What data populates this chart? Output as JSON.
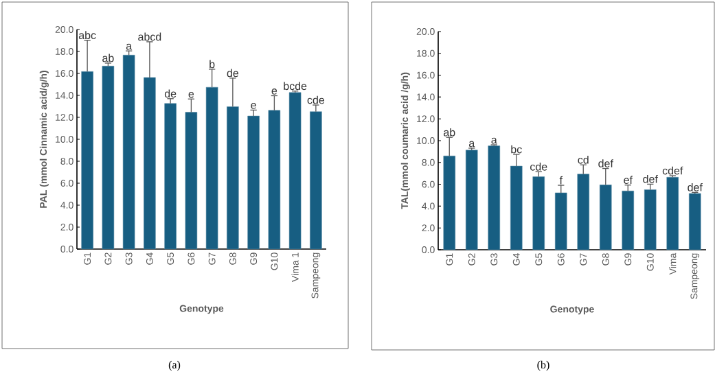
{
  "chart_data": [
    {
      "type": "bar",
      "xlabel": "Genotype",
      "ylabel": "PAL (mmol Cinnamic acid/g/h)",
      "categories": [
        "G1",
        "G2",
        "G3",
        "G4",
        "G5",
        "G6",
        "G7",
        "G8",
        "G9",
        "G10",
        "Vima 1",
        "Sampeong"
      ],
      "values": [
        16.17,
        16.67,
        17.67,
        15.63,
        13.26,
        12.47,
        14.74,
        12.97,
        12.12,
        12.64,
        14.26,
        12.52
      ],
      "errors": [
        2.85,
        0.27,
        0.38,
        3.25,
        0.44,
        1.2,
        1.64,
        2.6,
        0.54,
        1.33,
        0.13,
        0.6
      ],
      "color": "#175e82",
      "ylim": [
        0,
        20
      ],
      "yticks": [
        {
          "value": 0,
          "label": "0.0"
        },
        {
          "value": 2,
          "label": "2.0"
        },
        {
          "value": 4,
          "label": "4.0"
        },
        {
          "value": 6,
          "label": "6.0"
        },
        {
          "value": 8,
          "label": "8.0"
        },
        {
          "value": 10,
          "label": "10.0"
        },
        {
          "value": 12,
          "label": "12.0"
        },
        {
          "value": 14,
          "label": "14.0"
        },
        {
          "value": 16,
          "label": "16.0"
        },
        {
          "value": 18,
          "label": "18.0"
        },
        {
          "value": 20,
          "label": "20.0"
        }
      ],
      "annotations": [
        {
          "text": "abc",
          "x": "G1",
          "y": 19.02
        },
        {
          "text": "ab",
          "x": "G2",
          "y": 16.94
        },
        {
          "text": "a",
          "x": "G3",
          "y": 18.05
        },
        {
          "text": "abcd",
          "x": "G4",
          "y": 18.88
        },
        {
          "text": "de",
          "x": "G5",
          "y": 13.7
        },
        {
          "text": "e",
          "x": "G6",
          "y": 13.67
        },
        {
          "text": "b",
          "x": "G7",
          "y": 16.38
        },
        {
          "text": "de",
          "x": "G8",
          "y": 15.57
        },
        {
          "text": "e",
          "x": "G9",
          "y": 12.66
        },
        {
          "text": "e",
          "x": "G10",
          "y": 13.97
        },
        {
          "text": "bcde",
          "x": "Vima 1",
          "y": 14.39
        },
        {
          "text": "cde",
          "x": "Sampeong",
          "y": 13.12
        },
        "(a)"
      ]
    },
    {
      "type": "bar",
      "xlabel": "Genotype",
      "ylabel": "TAL(mmol coumaric acid /g/h)",
      "categories": [
        "G1",
        "G2",
        "G3",
        "G4",
        "G5",
        "G6",
        "G7",
        "G8",
        "G9",
        "G10",
        "Vima",
        "Sampeong"
      ],
      "values": [
        8.6,
        9.14,
        9.52,
        7.67,
        6.69,
        5.22,
        6.94,
        5.95,
        5.39,
        5.51,
        6.65,
        5.16
      ],
      "errors": [
        1.7,
        0.17,
        0.1,
        1.07,
        0.46,
        0.69,
        0.84,
        1.5,
        0.54,
        0.5,
        0.14,
        0.1
      ],
      "color": "#175e82",
      "ylim": [
        0,
        20
      ],
      "yticks": [
        {
          "value": 0,
          "label": "0.0"
        },
        {
          "value": 2,
          "label": "2.0"
        },
        {
          "value": 4,
          "label": "4.0"
        },
        {
          "value": 6,
          "label": "6.0"
        },
        {
          "value": 8,
          "label": "8.0"
        },
        {
          "value": 10,
          "label": "10.0"
        },
        {
          "value": 12,
          "label": "12.0"
        },
        {
          "value": 14,
          "label": "14.0"
        },
        {
          "value": 16,
          "label": "16.0"
        },
        {
          "value": 18,
          "label": "18.0"
        },
        {
          "value": 20,
          "label": "20.0"
        }
      ],
      "annotations": [
        {
          "text": "ab",
          "x": "G1",
          "y": 10.3
        },
        {
          "text": "a",
          "x": "G2",
          "y": 9.31
        },
        {
          "text": "a",
          "x": "G3",
          "y": 9.62
        },
        {
          "text": "bc",
          "x": "G4",
          "y": 8.74
        },
        {
          "text": "cde",
          "x": "G5",
          "y": 7.15
        },
        {
          "text": "f",
          "x": "G6",
          "y": 5.91
        },
        {
          "text": "cd",
          "x": "G7",
          "y": 7.78
        },
        {
          "text": "def",
          "x": "G8",
          "y": 7.45
        },
        {
          "text": "ef",
          "x": "G9",
          "y": 5.93
        },
        {
          "text": "def",
          "x": "G10",
          "y": 6.02
        },
        {
          "text": "cdef",
          "x": "Vima",
          "y": 6.79
        },
        {
          "text": "def",
          "x": "Sampeong",
          "y": 5.26
        },
        "(b)"
      ]
    }
  ]
}
